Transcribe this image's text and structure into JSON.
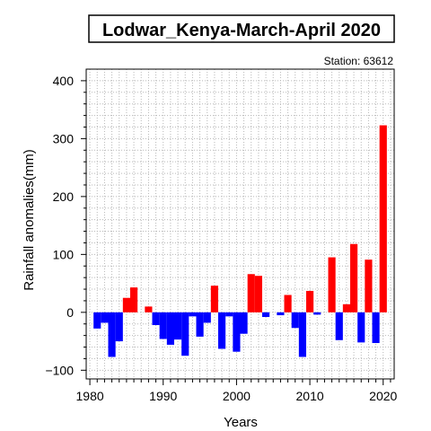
{
  "chart_data": {
    "type": "bar",
    "title": "Lodwar_Kenya-March-April 2020",
    "subtitle": "Station: 63612",
    "xlabel": "Years",
    "ylabel": "Rainfall anomalies(mm)",
    "xlim": [
      1979.5,
      2021.5
    ],
    "ylim": [
      -115,
      420
    ],
    "x_ticks": [
      1980,
      1990,
      2000,
      2010,
      2020
    ],
    "y_ticks": [
      -100,
      0,
      100,
      200,
      300,
      400
    ],
    "grid": true,
    "positive_color": "#ff0000",
    "negative_color": "#0000ff",
    "series": [
      {
        "x": [
          1981,
          1982,
          1983,
          1984,
          1985,
          1986,
          1987,
          1988,
          1989,
          1990,
          1991,
          1992,
          1993,
          1994,
          1995,
          1996,
          1997,
          1998,
          1999,
          2000,
          2001,
          2002,
          2003,
          2004,
          2005,
          2006,
          2007,
          2008,
          2009,
          2010,
          2011,
          2012,
          2013,
          2014,
          2015,
          2016,
          2017,
          2018,
          2019,
          2020
        ],
        "values": [
          -28,
          -18,
          -77,
          -50,
          25,
          43,
          0,
          10,
          -22,
          -46,
          -56,
          -47,
          -75,
          -7,
          -42,
          -18,
          46,
          -63,
          -7,
          -68,
          -37,
          66,
          63,
          -8,
          0,
          -5,
          30,
          -27,
          -77,
          37,
          -4,
          0,
          95,
          -48,
          14,
          118,
          -52,
          91,
          -53,
          323
        ]
      }
    ]
  }
}
